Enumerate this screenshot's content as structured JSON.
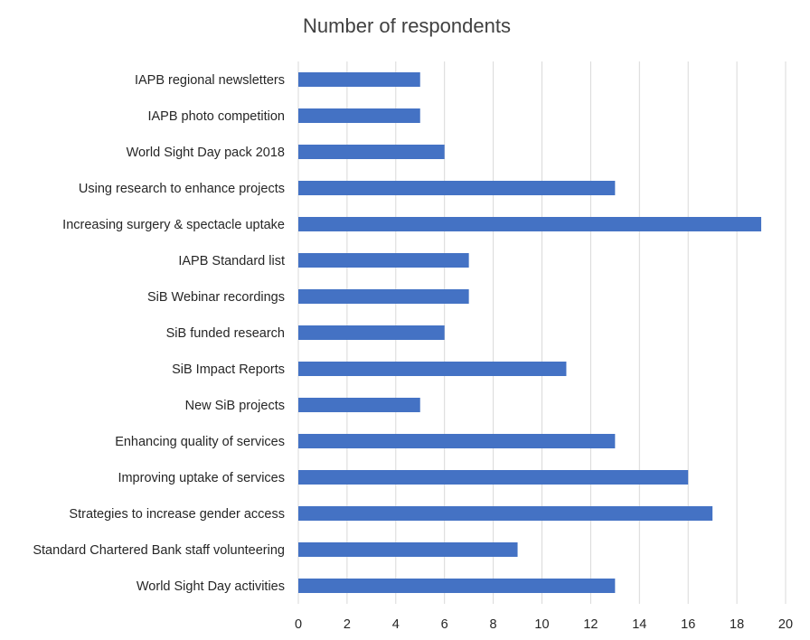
{
  "chart_data": {
    "type": "bar",
    "orientation": "horizontal",
    "title": "Number of respondents",
    "xlabel": "",
    "ylabel": "",
    "categories": [
      "IAPB regional newsletters",
      "IAPB photo competition",
      "World Sight Day pack 2018",
      "Using research to enhance projects",
      "Increasing surgery & spectacle uptake",
      "IAPB Standard list",
      "SiB Webinar recordings",
      "SiB funded research",
      "SiB Impact Reports",
      "New SiB projects",
      "Enhancing quality of services",
      "Improving uptake of services",
      "Strategies to increase gender access",
      "Standard Chartered Bank staff volunteering",
      "World Sight Day activities"
    ],
    "values": [
      5,
      5,
      6,
      13,
      19,
      7,
      7,
      6,
      11,
      5,
      13,
      16,
      17,
      9,
      13
    ],
    "xlim": [
      0,
      20
    ],
    "xticks": [
      "0",
      "2",
      "4",
      "6",
      "8",
      "10",
      "12",
      "14",
      "16",
      "18",
      "20"
    ],
    "grid": true,
    "legend": "none",
    "bar_color": "#4472c4"
  }
}
